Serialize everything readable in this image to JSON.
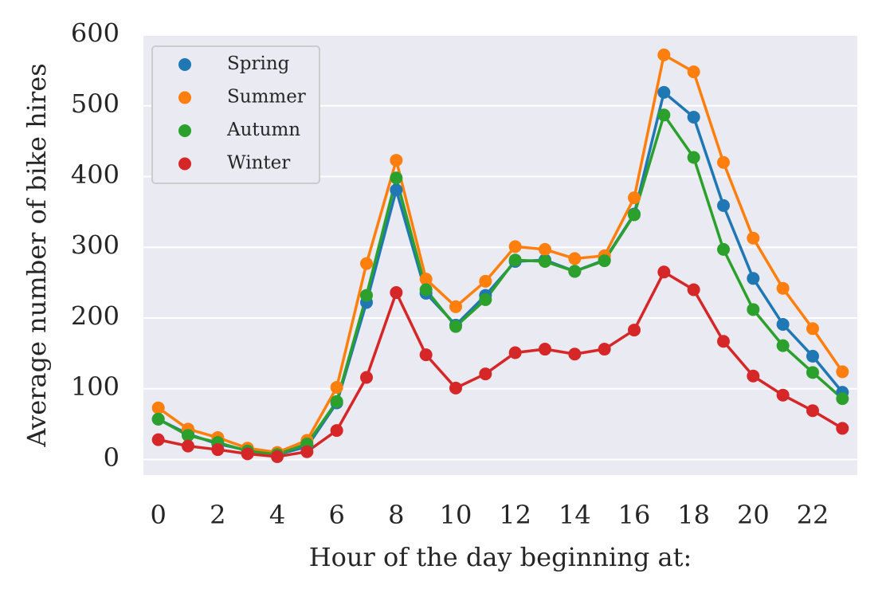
{
  "chart_data": {
    "type": "line",
    "xlabel": "Hour of the day beginning at:",
    "ylabel": "Average number of bike hires",
    "x": [
      0,
      1,
      2,
      3,
      4,
      5,
      6,
      7,
      8,
      9,
      10,
      11,
      12,
      13,
      14,
      15,
      16,
      17,
      18,
      19,
      20,
      21,
      22,
      23
    ],
    "xticks": [
      0,
      2,
      4,
      6,
      8,
      10,
      12,
      14,
      16,
      18,
      20,
      22
    ],
    "yticks": [
      0,
      100,
      200,
      300,
      400,
      500,
      600
    ],
    "xlim": [
      -0.5,
      23.5
    ],
    "ylim": [
      -22,
      600
    ],
    "grid": true,
    "legend_position": "top-left",
    "series": [
      {
        "name": "Spring",
        "color": "#1f77b4",
        "values": [
          57,
          36,
          22,
          13,
          7,
          18,
          80,
          222,
          381,
          235,
          190,
          232,
          280,
          282,
          266,
          282,
          347,
          519,
          484,
          359,
          256,
          191,
          146,
          95
        ]
      },
      {
        "name": "Summer",
        "color": "#ff7f0e",
        "values": [
          73,
          43,
          31,
          16,
          10,
          27,
          102,
          277,
          423,
          255,
          216,
          252,
          301,
          297,
          284,
          288,
          370,
          572,
          548,
          420,
          313,
          242,
          185,
          124
        ]
      },
      {
        "name": "Autumn",
        "color": "#2ca02c",
        "values": [
          57,
          34,
          24,
          12,
          7,
          22,
          82,
          232,
          398,
          240,
          188,
          226,
          282,
          280,
          266,
          281,
          346,
          487,
          427,
          297,
          212,
          161,
          123,
          86
        ]
      },
      {
        "name": "Winter",
        "color": "#d62728",
        "values": [
          28,
          19,
          14,
          8,
          4,
          11,
          41,
          116,
          236,
          148,
          101,
          121,
          151,
          156,
          149,
          156,
          183,
          265,
          240,
          167,
          118,
          91,
          69,
          44
        ]
      }
    ]
  }
}
